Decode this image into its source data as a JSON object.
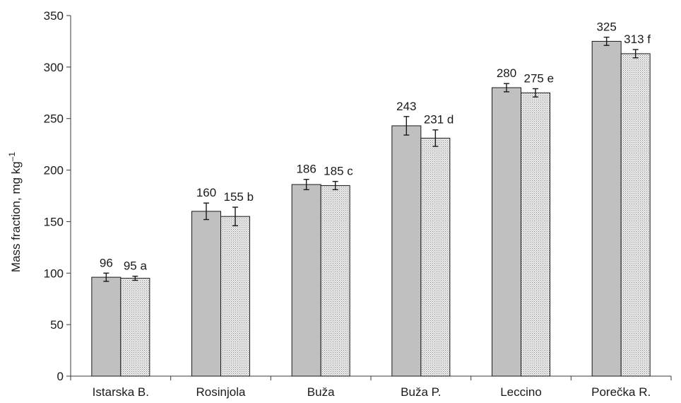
{
  "chart_data": {
    "type": "bar",
    "title": "",
    "xlabel": "",
    "ylabel": "Mass fraction, mg kg",
    "ylabel_sup": "–1",
    "ylim": [
      0,
      350
    ],
    "yticks": [
      0,
      50,
      100,
      150,
      200,
      250,
      300,
      350
    ],
    "grid": false,
    "categories": [
      "Istarska B.",
      "Rosinjola",
      "Buža",
      "Buža P.",
      "Leccino",
      "Porečka R."
    ],
    "series": [
      {
        "values": [
          96,
          160,
          186,
          243,
          280,
          325
        ],
        "errors": [
          4,
          8,
          5,
          9,
          4,
          4
        ],
        "labels": [
          "96",
          "160",
          "186",
          "243",
          "280",
          "325"
        ],
        "color": "#c0c0c0",
        "pattern": "solid"
      },
      {
        "values": [
          95,
          155,
          185,
          231,
          275,
          313
        ],
        "errors": [
          2,
          9,
          4,
          8,
          4,
          4
        ],
        "labels": [
          "95 a",
          "155 b",
          "185 c",
          "231 d",
          "275 e",
          "313 f"
        ],
        "color": "#e0e0e0",
        "pattern": "dotted"
      }
    ]
  }
}
